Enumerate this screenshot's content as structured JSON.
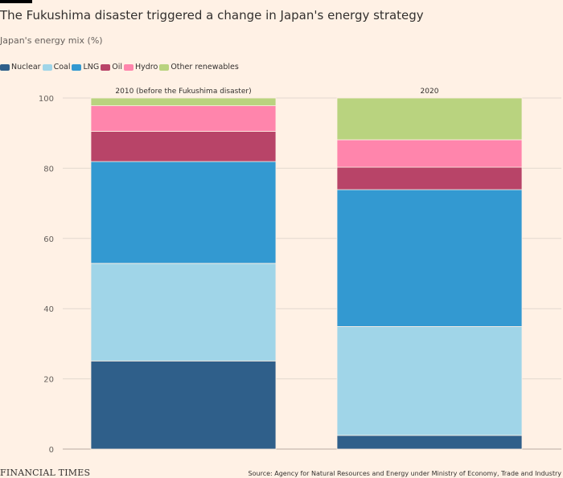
{
  "title": "The Fukushima disaster triggered a change in Japan's energy strategy",
  "subtitle": "Japan's energy mix (%)",
  "colors": {
    "nuclear": "#2f5f8a",
    "coal": "#a0d5e8",
    "lng": "#3399d1",
    "oil": "#b84468",
    "hydro": "#ff85ac",
    "other": "#b9d37f",
    "gridline": "#e3d8cf",
    "axis": "#66605c"
  },
  "legend": [
    {
      "label": "Nuclear",
      "color_key": "nuclear"
    },
    {
      "label": "Coal",
      "color_key": "coal"
    },
    {
      "label": "LNG",
      "color_key": "lng"
    },
    {
      "label": "Oil",
      "color_key": "oil"
    },
    {
      "label": "Hydro",
      "color_key": "hydro"
    },
    {
      "label": "Other renewables",
      "color_key": "other"
    }
  ],
  "chart_data": {
    "type": "bar",
    "stacked": true,
    "categories": [
      "2010 (before the Fukushima disaster)",
      "2020"
    ],
    "series": [
      {
        "name": "Nuclear",
        "color_key": "nuclear",
        "values": [
          25.1,
          3.9
        ]
      },
      {
        "name": "Coal",
        "color_key": "coal",
        "values": [
          27.8,
          31.0
        ]
      },
      {
        "name": "LNG",
        "color_key": "lng",
        "values": [
          29.0,
          39.0
        ]
      },
      {
        "name": "Oil",
        "color_key": "oil",
        "values": [
          8.6,
          6.4
        ]
      },
      {
        "name": "Hydro",
        "color_key": "hydro",
        "values": [
          7.3,
          7.8
        ]
      },
      {
        "name": "Other renewables",
        "color_key": "other",
        "values": [
          2.2,
          11.9
        ]
      }
    ],
    "title": "The Fukushima disaster triggered a change in Japan's energy strategy",
    "xlabel": "",
    "ylabel": "Japan's energy mix (%)",
    "ylim": [
      0,
      100
    ],
    "yticks": [
      0,
      20,
      40,
      60,
      80,
      100
    ],
    "grid": true,
    "legend_position": "top-left"
  },
  "footer": {
    "brand": "FINANCIAL TIMES",
    "source": "Source: Agency for Natural Resources and Energy under Ministry of Economy, Trade and Industry"
  }
}
